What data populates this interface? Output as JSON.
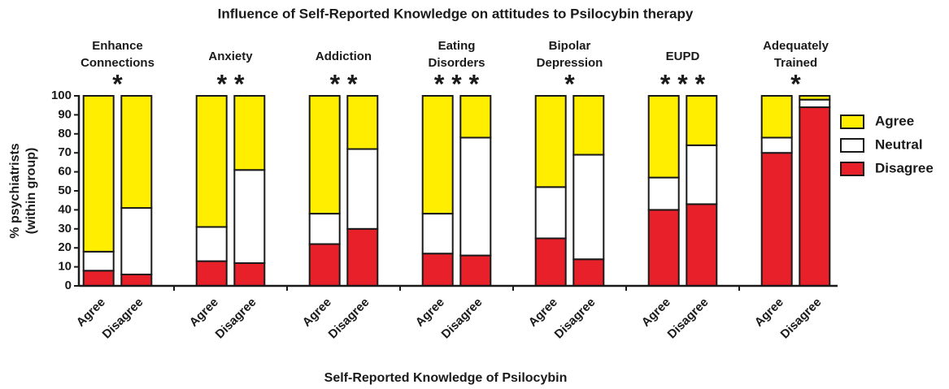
{
  "chart_data": {
    "type": "stacked_bar",
    "title": "Influence of Self-Reported Knowledge on attitudes to Psilocybin therapy",
    "xlabel": "Self-Reported Knowledge of Psilocybin",
    "ylabel": [
      "% psychiatrists",
      "(within group)"
    ],
    "groups": [
      {
        "label": [
          "Enhance",
          "Connections"
        ],
        "stars": "*"
      },
      {
        "label": [
          "Anxiety"
        ],
        "stars": "* *"
      },
      {
        "label": [
          "Addiction"
        ],
        "stars": "* *"
      },
      {
        "label": [
          "Eating",
          "Disorders"
        ],
        "stars": "* * *"
      },
      {
        "label": [
          "Bipolar",
          "Depression"
        ],
        "stars": "*"
      },
      {
        "label": [
          "EUPD"
        ],
        "stars": "* * *"
      },
      {
        "label": [
          "Adequately",
          "Trained"
        ],
        "stars": "*"
      }
    ],
    "categories": [
      "Agree",
      "Disagree",
      "Agree",
      "Disagree",
      "Agree",
      "Disagree",
      "Agree",
      "Disagree",
      "Agree",
      "Disagree",
      "Agree",
      "Disagree",
      "Agree",
      "Disagree"
    ],
    "series": [
      {
        "name": "Agree",
        "color": "#ffee00",
        "values": [
          82,
          59,
          69,
          39,
          62,
          28,
          62,
          22,
          48,
          31,
          43,
          26,
          22,
          2
        ]
      },
      {
        "name": "Neutral",
        "color": "#ffffff",
        "values": [
          10,
          35,
          18,
          49,
          16,
          42,
          21,
          62,
          27,
          55,
          17,
          31,
          8,
          4
        ]
      },
      {
        "name": "Disagree",
        "color": "#e8202a",
        "values": [
          8,
          6,
          13,
          12,
          22,
          30,
          17,
          16,
          25,
          14,
          40,
          43,
          70,
          94
        ]
      }
    ],
    "ylim": [
      0,
      100
    ],
    "yticks": [
      0,
      10,
      20,
      30,
      40,
      50,
      60,
      70,
      80,
      90,
      100
    ],
    "legend": "right"
  }
}
